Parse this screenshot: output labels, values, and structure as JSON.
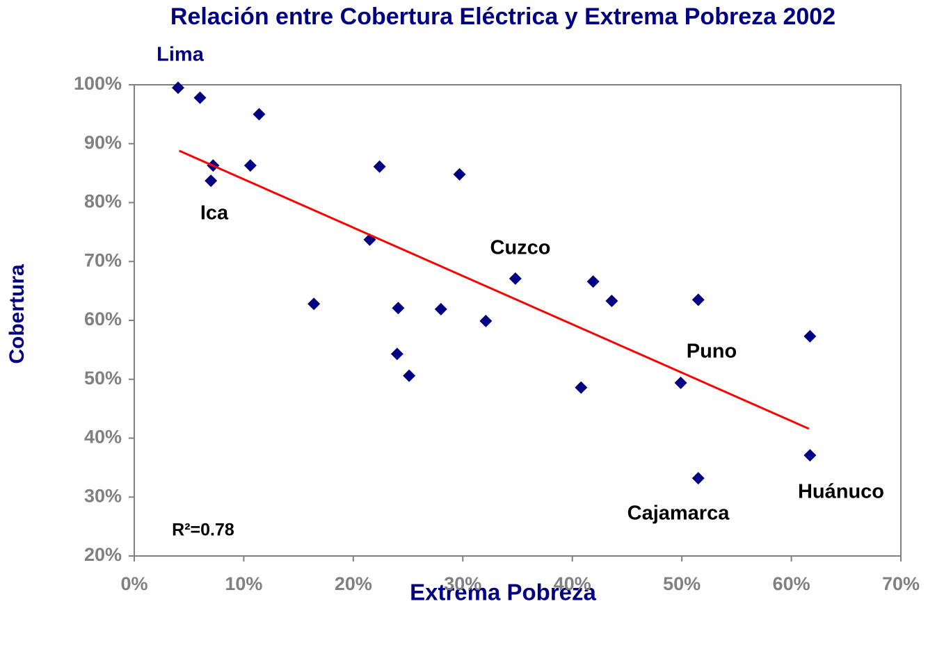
{
  "chart_data": {
    "type": "scatter",
    "title": "Relación entre Cobertura Eléctrica y Extrema Pobreza 2002",
    "x_label": "Extrema Pobreza",
    "y_label": "Cobertura",
    "color": "#000080",
    "x": [
      4.0,
      6.0,
      11.4,
      7.2,
      7.0,
      10.6,
      22.4,
      29.7,
      21.5,
      16.4,
      24.1,
      28.0,
      32.1,
      34.8,
      41.9,
      43.6,
      51.5,
      61.7,
      24.0,
      25.1,
      40.8,
      49.9,
      61.7,
      51.5
    ],
    "values": [
      99.5,
      97.8,
      95.0,
      86.3,
      83.7,
      86.3,
      86.1,
      84.8,
      73.7,
      62.8,
      62.1,
      61.9,
      59.9,
      67.1,
      66.6,
      63.3,
      63.5,
      57.3,
      54.3,
      50.6,
      48.6,
      49.4,
      37.1,
      33.2
    ],
    "trendline": {
      "x": [
        4.1,
        61.6
      ],
      "values": [
        88.8,
        41.6
      ],
      "color": "#ff0000"
    },
    "annotations": [
      "Lima",
      "Ica",
      "Cuzco",
      "Puno",
      "Cajamarca",
      "Huánuco",
      "R²=0.78"
    ],
    "xlim": [
      0,
      70
    ],
    "ylim": [
      20,
      100
    ],
    "xticks": [
      {
        "value": 0,
        "label": "0%"
      },
      {
        "value": 10,
        "label": "10%"
      },
      {
        "value": 20,
        "label": "20%"
      },
      {
        "value": 30,
        "label": "30%"
      },
      {
        "value": 40,
        "label": "40%"
      },
      {
        "value": 50,
        "label": "50%"
      },
      {
        "value": 60,
        "label": "60%"
      },
      {
        "value": 70,
        "label": "70%"
      }
    ],
    "yticks": [
      {
        "value": 20,
        "label": "20%"
      },
      {
        "value": 30,
        "label": "30%"
      },
      {
        "value": 40,
        "label": "40%"
      },
      {
        "value": 50,
        "label": "50%"
      },
      {
        "value": 60,
        "label": "60%"
      },
      {
        "value": 70,
        "label": "70%"
      },
      {
        "value": 80,
        "label": "80%"
      },
      {
        "value": 90,
        "label": "90%"
      },
      {
        "value": 100,
        "label": "100%"
      }
    ]
  }
}
